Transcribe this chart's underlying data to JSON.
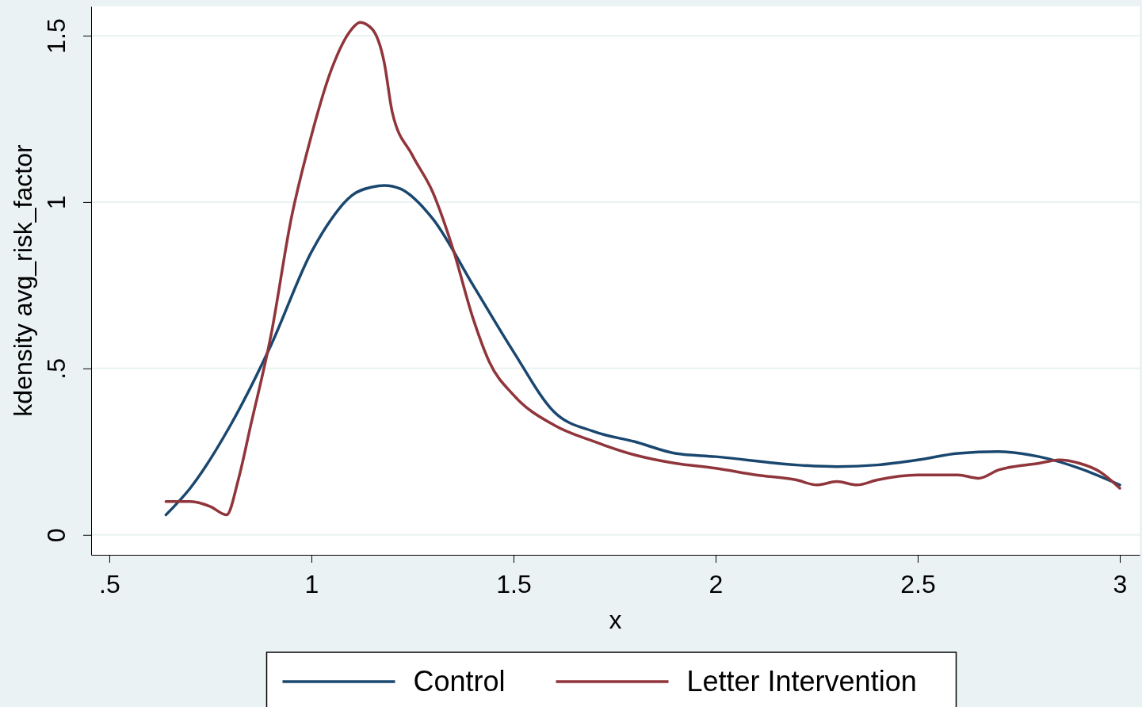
{
  "chart_data": {
    "type": "line",
    "xlabel": "x",
    "ylabel": "kdensity avg_risk_factor",
    "xlim": [
      0.455,
      3.049
    ],
    "ylim": [
      -0.06,
      1.588
    ],
    "xticks": [
      {
        "value": 0.5,
        "label": ".5"
      },
      1,
      {
        "value": 1.5,
        "label": "1.5"
      },
      2,
      {
        "value": 2.5,
        "label": "2.5"
      },
      3
    ],
    "yticks": [
      0,
      {
        "value": 0.5,
        "label": ".5"
      },
      1,
      {
        "value": 1.5,
        "label": "1.5"
      }
    ],
    "grid": "y",
    "legend": "bottom",
    "marker": "none",
    "line_style": "solid",
    "series": [
      {
        "name": "Control",
        "color": "#1a476f",
        "x": [
          0.64,
          0.7,
          0.8,
          0.9,
          1.0,
          1.05,
          1.1,
          1.15,
          1.18,
          1.22,
          1.3,
          1.4,
          1.5,
          1.6,
          1.7,
          1.8,
          1.9,
          2.0,
          2.2,
          2.3,
          2.4,
          2.5,
          2.6,
          2.7,
          2.8,
          2.9,
          3.0
        ],
        "values": [
          0.06,
          0.14,
          0.33,
          0.57,
          0.85,
          0.95,
          1.02,
          1.045,
          1.05,
          1.04,
          0.95,
          0.75,
          0.55,
          0.37,
          0.31,
          0.28,
          0.245,
          0.235,
          0.21,
          0.205,
          0.21,
          0.225,
          0.245,
          0.25,
          0.235,
          0.2,
          0.15
        ]
      },
      {
        "name": "Letter Intervention",
        "color": "#90353b",
        "x": [
          0.64,
          0.7,
          0.75,
          0.79,
          0.82,
          0.85,
          0.9,
          0.95,
          1.0,
          1.05,
          1.1,
          1.12,
          1.15,
          1.18,
          1.2,
          1.25,
          1.3,
          1.35,
          1.4,
          1.44,
          1.5,
          1.6,
          1.7,
          1.8,
          1.9,
          2.0,
          2.1,
          2.2,
          2.25,
          2.3,
          2.35,
          2.4,
          2.5,
          2.6,
          2.65,
          2.7,
          2.8,
          2.85,
          2.9,
          2.95,
          3.0
        ],
        "values": [
          0.1,
          0.1,
          0.085,
          0.06,
          0.17,
          0.33,
          0.6,
          0.95,
          1.2,
          1.4,
          1.52,
          1.54,
          1.52,
          1.42,
          1.27,
          1.14,
          1.03,
          0.86,
          0.65,
          0.52,
          0.42,
          0.33,
          0.28,
          0.24,
          0.215,
          0.2,
          0.18,
          0.165,
          0.15,
          0.16,
          0.15,
          0.165,
          0.18,
          0.18,
          0.17,
          0.195,
          0.215,
          0.225,
          0.215,
          0.19,
          0.14
        ]
      }
    ]
  }
}
